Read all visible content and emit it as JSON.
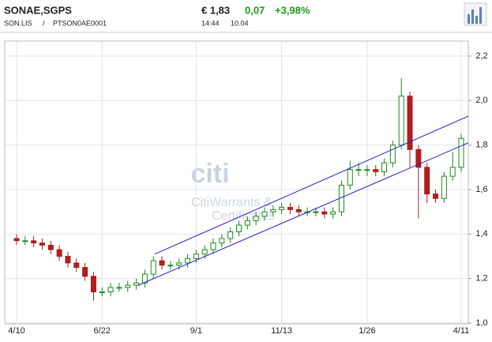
{
  "header": {
    "name": "SONAE,SGPS",
    "price": "€ 1,83",
    "change": "0,07",
    "change_pct": "+3,98%",
    "symbol": "SON.LIS",
    "separator": "/",
    "isin": "PTSON0AE0001",
    "time": "14:44",
    "date": "10.04"
  },
  "watermark": {
    "logo": "citi",
    "line1": "CitiWarrants &",
    "line2": "Certificates"
  },
  "chart_data": {
    "type": "candlestick",
    "categories": [
      "4/10",
      null,
      null,
      null,
      null,
      null,
      null,
      null,
      null,
      null,
      "6/22",
      null,
      null,
      null,
      null,
      null,
      null,
      null,
      null,
      null,
      null,
      "9/1",
      null,
      null,
      null,
      null,
      null,
      null,
      null,
      null,
      null,
      "11/13",
      null,
      null,
      null,
      null,
      null,
      null,
      null,
      null,
      null,
      "1/26",
      null,
      null,
      null,
      null,
      null,
      null,
      null,
      null,
      null,
      null,
      "4/11"
    ],
    "open": [
      1.38,
      1.37,
      1.37,
      1.36,
      1.35,
      1.33,
      1.3,
      1.27,
      1.25,
      1.21,
      1.14,
      1.14,
      1.16,
      1.16,
      1.17,
      1.18,
      1.22,
      1.28,
      1.26,
      1.26,
      1.27,
      1.29,
      1.31,
      1.33,
      1.36,
      1.38,
      1.41,
      1.44,
      1.46,
      1.48,
      1.5,
      1.51,
      1.52,
      1.51,
      1.5,
      1.5,
      1.5,
      1.49,
      1.5,
      1.62,
      1.69,
      1.69,
      1.69,
      1.68,
      1.72,
      1.8,
      2.02,
      1.78,
      1.7,
      1.58,
      1.56,
      1.66,
      1.7
    ],
    "high": [
      1.4,
      1.39,
      1.39,
      1.38,
      1.37,
      1.35,
      1.32,
      1.29,
      1.27,
      1.23,
      1.16,
      1.18,
      1.18,
      1.19,
      1.2,
      1.24,
      1.3,
      1.3,
      1.28,
      1.29,
      1.31,
      1.33,
      1.35,
      1.38,
      1.4,
      1.43,
      1.46,
      1.48,
      1.5,
      1.52,
      1.53,
      1.54,
      1.54,
      1.53,
      1.52,
      1.52,
      1.52,
      1.52,
      1.64,
      1.73,
      1.72,
      1.71,
      1.71,
      1.74,
      1.82,
      2.1,
      2.04,
      1.8,
      1.72,
      1.6,
      1.68,
      1.77,
      1.85
    ],
    "low": [
      1.35,
      1.35,
      1.34,
      1.33,
      1.31,
      1.28,
      1.25,
      1.23,
      1.19,
      1.1,
      1.12,
      1.12,
      1.14,
      1.14,
      1.15,
      1.16,
      1.2,
      1.24,
      1.24,
      1.24,
      1.25,
      1.27,
      1.29,
      1.31,
      1.34,
      1.36,
      1.39,
      1.42,
      1.44,
      1.46,
      1.48,
      1.49,
      1.49,
      1.48,
      1.48,
      1.48,
      1.47,
      1.47,
      1.48,
      1.6,
      1.66,
      1.66,
      1.66,
      1.66,
      1.7,
      1.78,
      1.7,
      1.47,
      1.54,
      1.54,
      1.54,
      1.64,
      1.68
    ],
    "close": [
      1.37,
      1.37,
      1.36,
      1.35,
      1.33,
      1.3,
      1.27,
      1.25,
      1.21,
      1.14,
      1.14,
      1.16,
      1.16,
      1.17,
      1.18,
      1.22,
      1.28,
      1.26,
      1.26,
      1.27,
      1.29,
      1.31,
      1.33,
      1.36,
      1.38,
      1.41,
      1.44,
      1.46,
      1.48,
      1.5,
      1.51,
      1.52,
      1.51,
      1.5,
      1.5,
      1.5,
      1.49,
      1.5,
      1.62,
      1.69,
      1.69,
      1.69,
      1.68,
      1.72,
      1.8,
      2.02,
      1.78,
      1.7,
      1.58,
      1.56,
      1.66,
      1.7,
      1.83
    ],
    "up_color": "#1a8a1a",
    "down_color": "#b01e1e",
    "channel": {
      "color": "#2020c8",
      "upper": [
        1.31,
        1.93
      ],
      "lower": [
        1.17,
        1.81
      ]
    },
    "ylim": [
      1.0,
      2.2
    ],
    "yticks": [
      {
        "value": 1.0,
        "label": "1,0"
      },
      {
        "value": 1.2,
        "label": "1,2"
      },
      {
        "value": 1.4,
        "label": "1,4"
      },
      {
        "value": 1.6,
        "label": "1,6"
      },
      {
        "value": 1.8,
        "label": "1,8"
      },
      {
        "value": 2.0,
        "label": "2,0"
      },
      {
        "value": 2.2,
        "label": "2,2"
      }
    ],
    "grid": true
  }
}
